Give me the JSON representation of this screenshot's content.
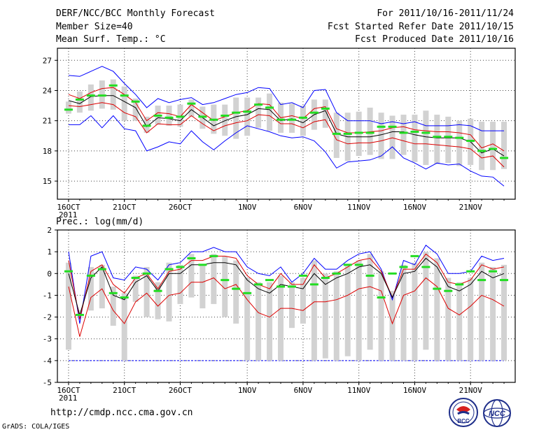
{
  "header": {
    "title": "DERF/NCC/BCC Monthly Forecast",
    "member_size": "Member Size=40",
    "variable": "Mean Surf. Temp.: °C",
    "period": "For 2011/10/16-2011/11/24",
    "fcst_started": "Fcst Started Refer Date 2011/10/15",
    "fcst_produced": "Fcst Produced Date 2011/10/16"
  },
  "footer": {
    "url": "http://cmdp.ncc.cma.gov.cn",
    "credit": "GrADS: COLA/IGES",
    "logo1_text": "BCC",
    "logo2_text": "NCC"
  },
  "chart_data": [
    {
      "type": "line",
      "title": "Mean Surf. Temp.: °C",
      "x_ticks": [
        "16OCT",
        "21OCT",
        "26OCT",
        "1NOV",
        "6NOV",
        "11NOV",
        "16NOV",
        "21NOV"
      ],
      "x_tick_days": [
        0,
        5,
        10,
        16,
        21,
        26,
        31,
        36
      ],
      "x_sublabel": "2011",
      "y_ticks": [
        "27",
        "24",
        "21",
        "18",
        "15"
      ],
      "y_tick_values": [
        27,
        24,
        21,
        18,
        15
      ],
      "ylim": [
        13.2,
        28.2
      ],
      "xlim": [
        -1,
        40
      ],
      "series": [
        {
          "name": "ensemble max",
          "color": "#0000ff",
          "values": [
            25.5,
            25.4,
            25.9,
            26.4,
            25.9,
            24.7,
            23.6,
            22.3,
            23.2,
            22.8,
            23.1,
            23.3,
            22.6,
            22.8,
            23.2,
            23.6,
            23.8,
            24.3,
            24.2,
            22.6,
            22.8,
            22.3,
            24.0,
            24.1,
            21.8,
            21.0,
            21.0,
            21.0,
            20.7,
            20.9,
            20.7,
            20.9,
            20.5,
            20.5,
            20.5,
            20.6,
            20.5,
            20.0,
            20.0,
            20.0
          ]
        },
        {
          "name": "upper bound",
          "color": "#dd0000",
          "values": [
            23.6,
            23.2,
            23.8,
            24.2,
            24.3,
            23.6,
            22.8,
            21.0,
            21.8,
            21.7,
            21.4,
            22.6,
            21.8,
            21.0,
            21.4,
            21.8,
            22.0,
            22.7,
            22.6,
            21.3,
            21.5,
            21.2,
            22.2,
            22.4,
            20.2,
            19.8,
            19.8,
            19.9,
            20.0,
            20.3,
            20.4,
            20.1,
            20.0,
            19.9,
            19.9,
            19.8,
            19.6,
            18.3,
            18.7,
            18.0
          ]
        },
        {
          "name": "ensemble mean",
          "color": "#000000",
          "values": [
            23.0,
            22.7,
            23.4,
            23.5,
            23.5,
            22.9,
            22.3,
            20.4,
            21.3,
            21.2,
            21.0,
            22.1,
            21.3,
            20.5,
            21.0,
            21.4,
            21.6,
            22.2,
            22.1,
            21.0,
            21.2,
            20.8,
            21.6,
            22.0,
            19.7,
            19.4,
            19.4,
            19.4,
            19.6,
            19.9,
            19.9,
            19.6,
            19.4,
            19.3,
            19.3,
            19.3,
            18.9,
            17.8,
            18.2,
            17.5
          ]
        },
        {
          "name": "lower bound",
          "color": "#dd0000",
          "values": [
            22.5,
            22.4,
            22.6,
            22.8,
            22.6,
            21.8,
            21.4,
            19.8,
            20.7,
            20.6,
            20.6,
            21.5,
            20.7,
            20.0,
            20.5,
            20.8,
            21.0,
            21.6,
            21.5,
            20.7,
            20.7,
            20.3,
            20.9,
            21.1,
            19.1,
            18.7,
            18.8,
            18.8,
            19.0,
            19.3,
            19.0,
            18.7,
            18.7,
            18.6,
            18.5,
            18.4,
            18.2,
            17.3,
            17.5,
            16.4
          ]
        },
        {
          "name": "ensemble min",
          "color": "#0000ff",
          "values": [
            20.6,
            20.6,
            21.5,
            20.3,
            21.5,
            20.2,
            20.0,
            18.0,
            18.4,
            18.9,
            18.7,
            20.0,
            18.9,
            18.1,
            19.0,
            19.8,
            20.5,
            20.2,
            19.9,
            19.5,
            19.3,
            19.4,
            19.0,
            17.9,
            16.3,
            16.9,
            17.0,
            17.1,
            17.5,
            18.4,
            17.3,
            16.8,
            16.2,
            16.8,
            16.6,
            16.7,
            16.0,
            15.5,
            15.4,
            14.5
          ]
        }
      ],
      "bars": {
        "name": "member spread",
        "color": "#d2d2d2",
        "low": [
          21.7,
          21.8,
          22.0,
          22.2,
          22.1,
          21.0,
          21.0,
          19.8,
          20.6,
          20.5,
          20.4,
          21.4,
          20.2,
          19.7,
          19.5,
          19.2,
          19.5,
          20.3,
          20.0,
          19.8,
          19.8,
          19.5,
          20.1,
          20.3,
          17.3,
          17.0,
          17.5,
          17.6,
          17.2,
          17.2,
          17.6,
          16.9,
          16.6,
          16.7,
          16.8,
          16.5,
          16.6,
          16.1,
          16.1,
          16.2
        ],
        "high": [
          22.9,
          23.9,
          24.6,
          25.0,
          25.1,
          24.4,
          23.2,
          21.4,
          22.5,
          22.5,
          22.6,
          23.1,
          22.4,
          22.6,
          22.6,
          23.3,
          23.3,
          23.3,
          23.7,
          22.8,
          22.7,
          22.5,
          23.1,
          23.1,
          21.8,
          21.8,
          21.9,
          22.3,
          21.8,
          21.5,
          21.6,
          21.6,
          22.0,
          21.6,
          21.4,
          21.0,
          21.2,
          20.9,
          20.9,
          20.9
        ]
      },
      "markers": {
        "name": "observation",
        "color": "#22dd22",
        "values": [
          22.1,
          23.1,
          23.5,
          23.5,
          24.5,
          23.5,
          22.9,
          20.5,
          21.5,
          21.3,
          21.4,
          22.7,
          21.4,
          21.1,
          21.5,
          21.8,
          21.9,
          22.6,
          22.3,
          21.1,
          21.1,
          21.3,
          21.8,
          22.2,
          19.7,
          19.7,
          19.8,
          19.8,
          20.4,
          20.4,
          19.8,
          19.9,
          19.8,
          19.4,
          19.4,
          19.3,
          19.0,
          18.0,
          18.2,
          17.3
        ]
      }
    },
    {
      "type": "line",
      "title": "Prec.: log(mm/d)",
      "x_ticks": [
        "16OCT",
        "21OCT",
        "26OCT",
        "1NOV",
        "6NOV",
        "11NOV",
        "16NOV",
        "21NOV"
      ],
      "x_tick_days": [
        0,
        5,
        10,
        16,
        21,
        26,
        31,
        36
      ],
      "x_sublabel": "2011",
      "y_ticks": [
        "2",
        "1",
        "0",
        "-1",
        "-2",
        "-3",
        "-4",
        "-5"
      ],
      "y_tick_values": [
        2,
        1,
        0,
        -1,
        -2,
        -3,
        -4,
        -5
      ],
      "ylim": [
        -5,
        2
      ],
      "xlim": [
        -1,
        40
      ],
      "reference_line": {
        "value": -4,
        "color": "#0000ff"
      },
      "series": [
        {
          "name": "ensemble max",
          "color": "#0000ff",
          "values": [
            1.0,
            -2.3,
            0.8,
            1.0,
            -0.2,
            -0.3,
            0.3,
            0.2,
            -0.3,
            0.4,
            0.5,
            1.0,
            1.0,
            1.2,
            1.0,
            1.0,
            0.3,
            0.0,
            -0.1,
            0.3,
            -0.4,
            0.0,
            0.7,
            0.2,
            0.2,
            0.6,
            0.9,
            1.0,
            0.2,
            -1.2,
            0.6,
            0.4,
            1.3,
            0.9,
            0.0,
            0.0,
            0.1,
            0.8,
            0.6,
            0.7
          ]
        },
        {
          "name": "upper bound",
          "color": "#dd0000",
          "values": [
            0.6,
            -2.1,
            0.1,
            0.4,
            -0.5,
            -0.9,
            -0.2,
            0.0,
            -0.7,
            0.1,
            0.2,
            0.6,
            0.6,
            0.8,
            0.8,
            0.7,
            -0.1,
            -0.5,
            -0.7,
            0.0,
            -0.5,
            -0.5,
            0.4,
            -0.2,
            0.0,
            0.3,
            0.6,
            0.7,
            0.1,
            -1.1,
            0.2,
            0.2,
            0.9,
            0.5,
            -0.4,
            -0.5,
            -0.3,
            0.4,
            0.2,
            0.3
          ]
        },
        {
          "name": "ensemble mean",
          "color": "#000000",
          "values": [
            0.0,
            -1.9,
            -0.2,
            0.3,
            -1.0,
            -1.2,
            -0.4,
            -0.1,
            -0.8,
            0.0,
            0.0,
            0.4,
            0.4,
            0.5,
            0.5,
            0.4,
            -0.3,
            -0.7,
            -0.9,
            -0.5,
            -0.6,
            -0.7,
            0.0,
            -0.5,
            -0.2,
            0.0,
            0.3,
            0.4,
            0.0,
            -1.1,
            0.0,
            0.1,
            0.7,
            0.3,
            -0.6,
            -0.8,
            -0.5,
            0.1,
            -0.2,
            0.0
          ]
        },
        {
          "name": "lower bound",
          "color": "#dd0000",
          "values": [
            -0.6,
            -2.9,
            -1.1,
            -0.7,
            -1.7,
            -2.3,
            -1.3,
            -0.9,
            -1.5,
            -1.0,
            -0.9,
            -0.4,
            -0.4,
            -0.2,
            -0.7,
            -0.5,
            -1.2,
            -1.8,
            -2.0,
            -1.6,
            -1.6,
            -1.7,
            -1.3,
            -1.3,
            -1.2,
            -1.0,
            -0.7,
            -0.6,
            -0.8,
            -2.3,
            -1.0,
            -0.8,
            -0.2,
            -0.6,
            -1.6,
            -1.9,
            -1.5,
            -1.0,
            -1.2,
            -1.5
          ]
        }
      ],
      "bars": {
        "name": "member spread",
        "color": "#d2d2d2",
        "low": [
          -3.5,
          -1.7,
          -1.7,
          -1.6,
          -2.4,
          -4.0,
          -1.3,
          -2.0,
          -2.1,
          -2.2,
          -1.4,
          -1.1,
          -1.6,
          -1.4,
          -2.0,
          -2.3,
          -4.0,
          -4.0,
          -4.0,
          -4.0,
          -2.5,
          -2.3,
          -4.0,
          -3.9,
          -4.0,
          -3.8,
          -4.0,
          -3.5,
          -4.0,
          -4.0,
          -4.0,
          -4.0,
          -3.5,
          -4.0,
          -4.0,
          -4.0,
          -4.0,
          -4.0,
          -4.0,
          -4.0
        ],
        "high": [
          0.5,
          -1.7,
          0.3,
          0.4,
          -0.6,
          -0.9,
          -0.1,
          0.3,
          -0.4,
          0.5,
          0.4,
          0.9,
          0.4,
          0.9,
          0.8,
          0.6,
          -0.2,
          -0.4,
          -0.4,
          -0.1,
          -0.4,
          -0.2,
          0.6,
          0.0,
          0.1,
          0.4,
          0.6,
          0.9,
          0.1,
          -0.8,
          0.4,
          0.5,
          1.0,
          0.7,
          -0.2,
          -0.4,
          -0.2,
          0.5,
          0.3,
          0.4
        ]
      },
      "markers": {
        "name": "observation",
        "color": "#22dd22",
        "values": [
          0.1,
          -1.9,
          -0.1,
          0.2,
          -0.9,
          -1.1,
          -0.2,
          0.0,
          -0.8,
          0.2,
          0.3,
          0.7,
          0.4,
          0.8,
          -0.3,
          -0.7,
          -0.9,
          -0.5,
          -0.3,
          -0.6,
          -0.6,
          -0.1,
          -0.5,
          -0.2,
          0.0,
          0.4,
          0.4,
          -0.1,
          -1.1,
          0.0,
          0.3,
          0.8,
          0.3,
          -0.7,
          -0.8,
          -0.5,
          0.1,
          -0.3,
          0.1,
          -0.3
        ]
      }
    }
  ]
}
